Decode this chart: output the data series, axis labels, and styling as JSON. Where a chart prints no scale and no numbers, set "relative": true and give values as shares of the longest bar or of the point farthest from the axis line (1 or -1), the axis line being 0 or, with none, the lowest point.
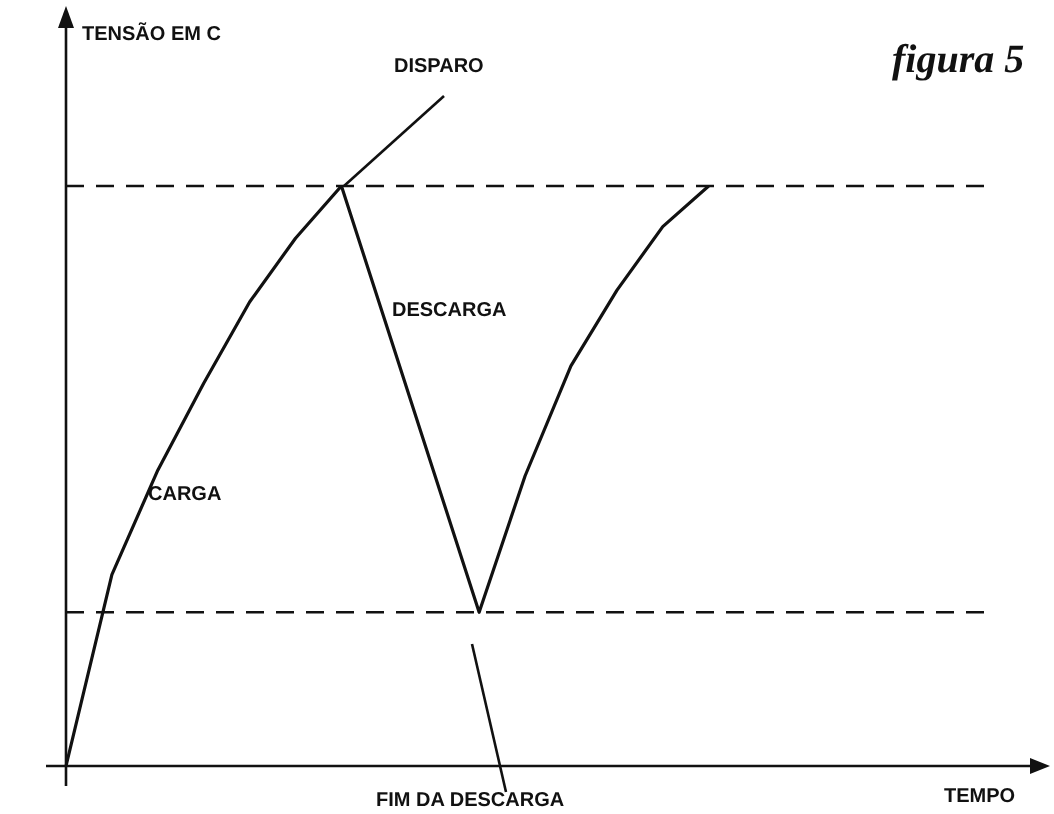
{
  "chart_data": {
    "type": "line",
    "relative": true,
    "title": "figura 5",
    "xlabel": "TEMPO",
    "categories": [
      null,
      null,
      null,
      null,
      null,
      null,
      null,
      null,
      null,
      null,
      null,
      null,
      null,
      null,
      null,
      null,
      null,
      null,
      null,
      null,
      null,
      null
    ],
    "series": [
      {
        "color": "#111111",
        "values": [
          0,
          0.33,
          0.51,
          0.66,
          0.8,
          0.91,
          1,
          0.755,
          0.51,
          0.265,
          0.5,
          0.69,
          0.82,
          0.93,
          1,
          null,
          null,
          null,
          null,
          null,
          null,
          null
        ]
      }
    ],
    "ref_lines": [
      {
        "axis": "y",
        "value": 1,
        "line_style": "dashed"
      },
      {
        "axis": "y",
        "value": 0.265,
        "line_style": "dashed"
      }
    ],
    "annotations": [
      "TENSÃO EM C",
      "DISPARO",
      "DESCARGA",
      "CARGA",
      "FIM DA DESCARGA"
    ],
    "marker": "none",
    "line_style": "solid",
    "legend": false
  }
}
